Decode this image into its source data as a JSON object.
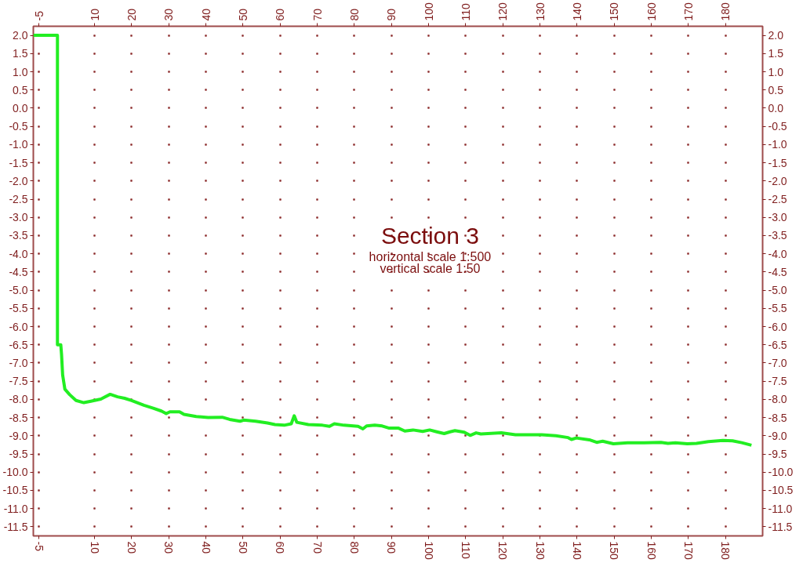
{
  "chart_data": {
    "type": "line",
    "title": "Section 3",
    "subtitle": "horizontal scale 1:500",
    "annotations": [
      "vertical scale 1:50"
    ],
    "x": [
      -6.5,
      0,
      0,
      0.9,
      1.1,
      1.4,
      2.0,
      3.3,
      5.0,
      7.1,
      9.0,
      11.7,
      14.2,
      16.2,
      18.1,
      20.0,
      23.3,
      25.8,
      28.0,
      29.3,
      30.3,
      32.9,
      34.1,
      37.4,
      40.6,
      44.4,
      46.4,
      49.2,
      50.2,
      53.4,
      56.6,
      58.6,
      61.1,
      63.0,
      63.8,
      64.5,
      67.6,
      71.4,
      73.3,
      74.6,
      77.2,
      81.0,
      82.3,
      83.3,
      85.5,
      87.5,
      89.4,
      91.9,
      93.6,
      95.8,
      98.4,
      100.3,
      102.2,
      104.2,
      105.8,
      107.1,
      109.6,
      111.2,
      112.8,
      114.1,
      119.6,
      123.4,
      130.5,
      134.3,
      137.6,
      138.5,
      139.8,
      143.3,
      145.3,
      146.9,
      149.8,
      153.6,
      158.1,
      162.6,
      164.5,
      166.5,
      169.7,
      172.2,
      175.4,
      179.3,
      181.9,
      184.4,
      187.0
    ],
    "series": [
      {
        "color": "#22ee22",
        "values": [
          2.0,
          2.0,
          -6.5,
          -6.5,
          -6.76,
          -7.33,
          -7.72,
          -7.87,
          -8.03,
          -8.09,
          -8.05,
          -7.99,
          -7.86,
          -7.93,
          -7.97,
          -8.03,
          -8.16,
          -8.24,
          -8.32,
          -8.39,
          -8.34,
          -8.34,
          -8.41,
          -8.47,
          -8.5,
          -8.49,
          -8.55,
          -8.6,
          -8.57,
          -8.6,
          -8.65,
          -8.69,
          -8.71,
          -8.67,
          -8.45,
          -8.63,
          -8.69,
          -8.71,
          -8.74,
          -8.67,
          -8.71,
          -8.74,
          -8.81,
          -8.73,
          -8.71,
          -8.73,
          -8.79,
          -8.79,
          -8.87,
          -8.84,
          -8.88,
          -8.84,
          -8.89,
          -8.94,
          -8.89,
          -8.86,
          -8.9,
          -8.99,
          -8.92,
          -8.95,
          -8.92,
          -8.97,
          -8.97,
          -9.0,
          -9.05,
          -9.1,
          -9.06,
          -9.11,
          -9.18,
          -9.15,
          -9.22,
          -9.19,
          -9.19,
          -9.18,
          -9.21,
          -9.19,
          -9.22,
          -9.21,
          -9.16,
          -9.13,
          -9.14,
          -9.19,
          -9.26
        ]
      }
    ],
    "xlim": [
      -6.5,
      190
    ],
    "xticks": [
      -5,
      10,
      20,
      30,
      40,
      50,
      60,
      70,
      80,
      90,
      100,
      110,
      120,
      130,
      140,
      150,
      160,
      170,
      180
    ],
    "x2lim": [
      -6.5,
      190
    ],
    "x2ticks": [
      -5,
      10,
      20,
      30,
      40,
      50,
      60,
      70,
      80,
      90,
      100,
      110,
      120,
      130,
      140,
      150,
      160,
      170,
      180
    ],
    "ylim": [
      -11.75,
      2.25
    ],
    "yticks": [
      {
        "value": 2,
        "label": "2.0"
      },
      1.5,
      {
        "value": 1,
        "label": "1.0"
      },
      0.5,
      {
        "value": 0,
        "label": "0.0"
      },
      -0.5,
      {
        "value": -1,
        "label": "-1.0"
      },
      -1.5,
      {
        "value": -2,
        "label": "-2.0"
      },
      -2.5,
      {
        "value": -3,
        "label": "-3.0"
      },
      -3.5,
      {
        "value": -4,
        "label": "-4.0"
      },
      -4.5,
      {
        "value": -5,
        "label": "-5.0"
      },
      -5.5,
      {
        "value": -6,
        "label": "-6.0"
      },
      -6.5,
      {
        "value": -7,
        "label": "-7.0"
      },
      -7.5,
      {
        "value": -8,
        "label": "-8.0"
      },
      -8.5,
      {
        "value": -9,
        "label": "-9.0"
      },
      -9.5,
      {
        "value": -10,
        "label": "-10.0"
      },
      -10.5,
      {
        "value": -11,
        "label": "-11.0"
      },
      -11.5
    ],
    "y2lim": [
      -11.75,
      2.25
    ],
    "y2ticks": [
      {
        "value": 2,
        "label": "2.0"
      },
      1.5,
      {
        "value": 1,
        "label": "1.0"
      },
      0.5,
      {
        "value": 0,
        "label": "0.0"
      },
      -0.5,
      {
        "value": -1,
        "label": "-1.0"
      },
      -1.5,
      {
        "value": -2,
        "label": "-2.0"
      },
      -2.5,
      {
        "value": -3,
        "label": "-3.0"
      },
      -3.5,
      {
        "value": -4,
        "label": "-4.0"
      },
      -4.5,
      {
        "value": -5,
        "label": "-5.0"
      },
      -5.5,
      {
        "value": -6,
        "label": "-6.0"
      },
      -6.5,
      {
        "value": -7,
        "label": "-7.0"
      },
      -7.5,
      {
        "value": -8,
        "label": "-8.0"
      },
      -8.5,
      {
        "value": -9,
        "label": "-9.0"
      },
      -9.5,
      {
        "value": -10,
        "label": "-10.0"
      },
      -10.5,
      {
        "value": -11,
        "label": "-11.0"
      },
      -11.5
    ],
    "grid": true,
    "line_style": "solid"
  }
}
